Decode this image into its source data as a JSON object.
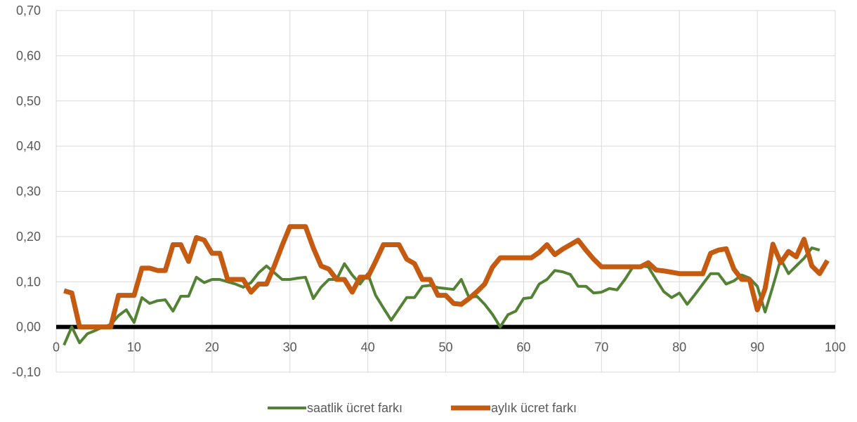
{
  "chart_data": {
    "type": "line",
    "xlim": [
      0,
      100
    ],
    "ylim": [
      -0.1,
      0.7
    ],
    "x_ticks": [
      "0",
      "10",
      "20",
      "30",
      "40",
      "50",
      "60",
      "70",
      "80",
      "90",
      "100"
    ],
    "y_ticks": [
      "-0,10",
      "0,00",
      "0,10",
      "0,20",
      "0,30",
      "0,40",
      "0,50",
      "0,60",
      "0,70"
    ],
    "grid": "vertical",
    "zero_line": true,
    "legend_position": "bottom",
    "series": [
      {
        "name": "saatlik ücret farkı",
        "color": "#548235",
        "points": [
          [
            1,
            -0.04
          ],
          [
            2,
            0.0
          ],
          [
            3,
            -0.035
          ],
          [
            4,
            -0.015
          ],
          [
            5,
            -0.008
          ],
          [
            6,
            0.0
          ],
          [
            7,
            0.005
          ],
          [
            8,
            0.025
          ],
          [
            9,
            0.038
          ],
          [
            10,
            0.01
          ],
          [
            11,
            0.065
          ],
          [
            12,
            0.052
          ],
          [
            13,
            0.058
          ],
          [
            14,
            0.06
          ],
          [
            15,
            0.035
          ],
          [
            16,
            0.068
          ],
          [
            17,
            0.068
          ],
          [
            18,
            0.11
          ],
          [
            19,
            0.098
          ],
          [
            20,
            0.105
          ],
          [
            21,
            0.105
          ],
          [
            22,
            0.1
          ],
          [
            23,
            0.095
          ],
          [
            24,
            0.088
          ],
          [
            25,
            0.098
          ],
          [
            26,
            0.12
          ],
          [
            27,
            0.135
          ],
          [
            28,
            0.12
          ],
          [
            29,
            0.105
          ],
          [
            30,
            0.105
          ],
          [
            31,
            0.108
          ],
          [
            32,
            0.11
          ],
          [
            33,
            0.063
          ],
          [
            34,
            0.088
          ],
          [
            35,
            0.105
          ],
          [
            36,
            0.105
          ],
          [
            37,
            0.14
          ],
          [
            38,
            0.115
          ],
          [
            39,
            0.095
          ],
          [
            40,
            0.118
          ],
          [
            41,
            0.07
          ],
          [
            42,
            0.042
          ],
          [
            43,
            0.015
          ],
          [
            44,
            0.04
          ],
          [
            45,
            0.065
          ],
          [
            46,
            0.065
          ],
          [
            47,
            0.09
          ],
          [
            48,
            0.092
          ],
          [
            49,
            0.087
          ],
          [
            50,
            0.085
          ],
          [
            51,
            0.083
          ],
          [
            52,
            0.105
          ],
          [
            53,
            0.065
          ],
          [
            54,
            0.068
          ],
          [
            55,
            0.05
          ],
          [
            56,
            0.028
          ],
          [
            57,
            0.0
          ],
          [
            58,
            0.027
          ],
          [
            59,
            0.035
          ],
          [
            60,
            0.063
          ],
          [
            61,
            0.065
          ],
          [
            62,
            0.095
          ],
          [
            63,
            0.105
          ],
          [
            64,
            0.125
          ],
          [
            65,
            0.122
          ],
          [
            66,
            0.116
          ],
          [
            67,
            0.09
          ],
          [
            68,
            0.09
          ],
          [
            69,
            0.075
          ],
          [
            70,
            0.077
          ],
          [
            71,
            0.085
          ],
          [
            72,
            0.082
          ],
          [
            73,
            0.105
          ],
          [
            74,
            0.132
          ],
          [
            75,
            0.135
          ],
          [
            76,
            0.133
          ],
          [
            77,
            0.105
          ],
          [
            78,
            0.078
          ],
          [
            79,
            0.065
          ],
          [
            80,
            0.075
          ],
          [
            81,
            0.05
          ],
          [
            82,
            0.072
          ],
          [
            83,
            0.095
          ],
          [
            84,
            0.118
          ],
          [
            85,
            0.118
          ],
          [
            86,
            0.095
          ],
          [
            87,
            0.102
          ],
          [
            88,
            0.115
          ],
          [
            89,
            0.108
          ],
          [
            90,
            0.09
          ],
          [
            91,
            0.033
          ],
          [
            92,
            0.09
          ],
          [
            93,
            0.15
          ],
          [
            94,
            0.118
          ],
          [
            95,
            0.135
          ],
          [
            96,
            0.152
          ],
          [
            97,
            0.175
          ],
          [
            98,
            0.17
          ]
        ]
      },
      {
        "name": "aylık ücret farkı",
        "color": "#C55A11",
        "points": [
          [
            1,
            0.08
          ],
          [
            2,
            0.075
          ],
          [
            3,
            0.0
          ],
          [
            4,
            0.0
          ],
          [
            5,
            0.0
          ],
          [
            6,
            0.0
          ],
          [
            7,
            0.0
          ],
          [
            8,
            0.07
          ],
          [
            9,
            0.07
          ],
          [
            10,
            0.07
          ],
          [
            11,
            0.13
          ],
          [
            12,
            0.13
          ],
          [
            13,
            0.125
          ],
          [
            14,
            0.125
          ],
          [
            15,
            0.182
          ],
          [
            16,
            0.182
          ],
          [
            17,
            0.145
          ],
          [
            18,
            0.198
          ],
          [
            19,
            0.192
          ],
          [
            20,
            0.163
          ],
          [
            21,
            0.163
          ],
          [
            22,
            0.105
          ],
          [
            23,
            0.105
          ],
          [
            24,
            0.105
          ],
          [
            25,
            0.077
          ],
          [
            26,
            0.095
          ],
          [
            27,
            0.095
          ],
          [
            28,
            0.135
          ],
          [
            29,
            0.18
          ],
          [
            30,
            0.222
          ],
          [
            31,
            0.222
          ],
          [
            32,
            0.222
          ],
          [
            33,
            0.175
          ],
          [
            34,
            0.135
          ],
          [
            35,
            0.128
          ],
          [
            36,
            0.105
          ],
          [
            37,
            0.105
          ],
          [
            38,
            0.077
          ],
          [
            39,
            0.11
          ],
          [
            40,
            0.11
          ],
          [
            41,
            0.145
          ],
          [
            42,
            0.182
          ],
          [
            43,
            0.182
          ],
          [
            44,
            0.182
          ],
          [
            45,
            0.15
          ],
          [
            46,
            0.14
          ],
          [
            47,
            0.105
          ],
          [
            48,
            0.105
          ],
          [
            49,
            0.07
          ],
          [
            50,
            0.07
          ],
          [
            51,
            0.052
          ],
          [
            52,
            0.05
          ],
          [
            53,
            0.063
          ],
          [
            54,
            0.078
          ],
          [
            55,
            0.095
          ],
          [
            56,
            0.132
          ],
          [
            57,
            0.153
          ],
          [
            58,
            0.153
          ],
          [
            59,
            0.153
          ],
          [
            60,
            0.153
          ],
          [
            61,
            0.153
          ],
          [
            62,
            0.165
          ],
          [
            63,
            0.182
          ],
          [
            64,
            0.16
          ],
          [
            65,
            0.172
          ],
          [
            66,
            0.182
          ],
          [
            67,
            0.192
          ],
          [
            68,
            0.17
          ],
          [
            69,
            0.15
          ],
          [
            70,
            0.133
          ],
          [
            71,
            0.133
          ],
          [
            72,
            0.133
          ],
          [
            73,
            0.133
          ],
          [
            74,
            0.133
          ],
          [
            75,
            0.133
          ],
          [
            76,
            0.142
          ],
          [
            77,
            0.126
          ],
          [
            78,
            0.124
          ],
          [
            79,
            0.121
          ],
          [
            80,
            0.118
          ],
          [
            81,
            0.118
          ],
          [
            82,
            0.118
          ],
          [
            83,
            0.118
          ],
          [
            84,
            0.163
          ],
          [
            85,
            0.17
          ],
          [
            86,
            0.173
          ],
          [
            87,
            0.128
          ],
          [
            88,
            0.105
          ],
          [
            89,
            0.105
          ],
          [
            90,
            0.038
          ],
          [
            91,
            0.085
          ],
          [
            92,
            0.183
          ],
          [
            93,
            0.142
          ],
          [
            94,
            0.167
          ],
          [
            95,
            0.155
          ],
          [
            96,
            0.194
          ],
          [
            97,
            0.135
          ],
          [
            98,
            0.118
          ],
          [
            99,
            0.147
          ]
        ]
      }
    ]
  }
}
